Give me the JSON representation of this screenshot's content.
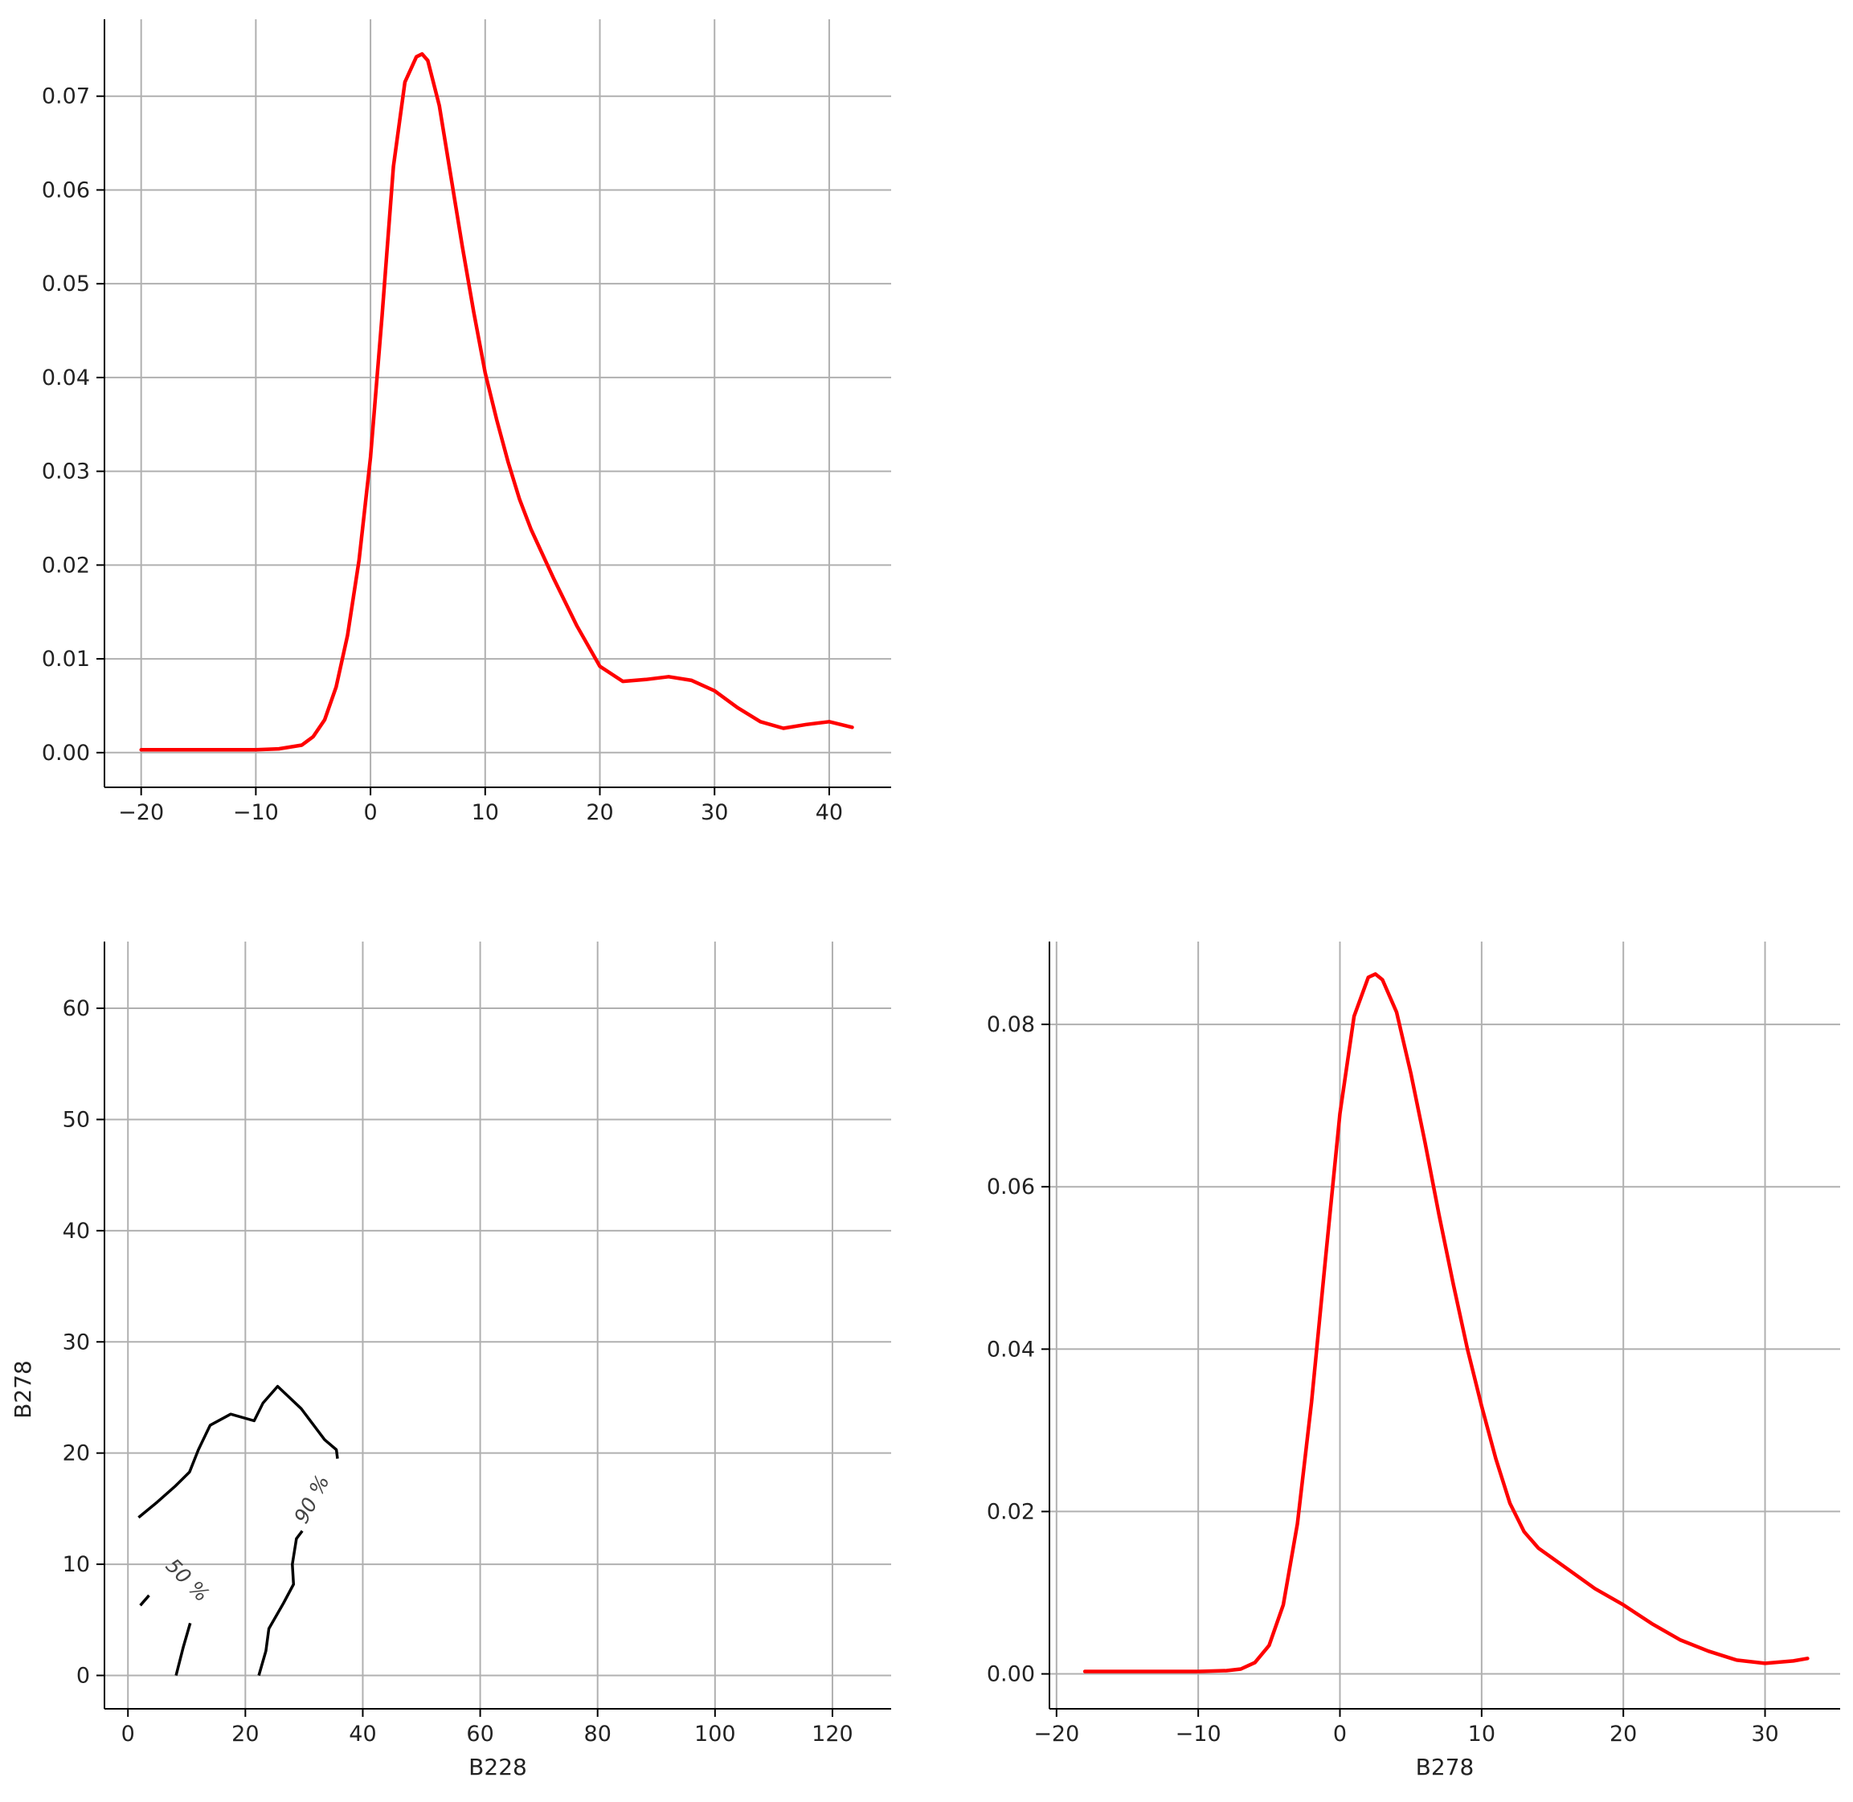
{
  "chart_data": [
    {
      "type": "line",
      "panel": "top-left",
      "title": "",
      "xlabel": "",
      "ylabel": "",
      "xlim": [
        -23.2,
        45.4
      ],
      "ylim": [
        -0.0037,
        0.0782
      ],
      "xticks": [
        -20,
        -10,
        0,
        10,
        20,
        30,
        40
      ],
      "xtick_labels": [
        "−20",
        "−10",
        "0",
        "10",
        "20",
        "30",
        "40"
      ],
      "yticks": [
        0.0,
        0.01,
        0.02,
        0.03,
        0.04,
        0.05,
        0.06,
        0.07
      ],
      "ytick_labels": [
        "0.00",
        "0.01",
        "0.02",
        "0.03",
        "0.04",
        "0.05",
        "0.06",
        "0.07"
      ],
      "grid": true,
      "color": "#ff0000",
      "series": [
        {
          "x": [
            -20,
            -10,
            -8,
            -6,
            -5,
            -4,
            -3,
            -2,
            -1,
            0,
            1,
            2,
            3,
            4,
            4.5,
            5,
            6,
            7,
            8,
            9,
            10,
            11,
            12,
            13,
            14,
            16,
            18,
            20,
            22,
            24,
            26,
            28,
            30,
            32,
            34,
            36,
            38,
            40,
            42
          ],
          "y": [
            0.0003,
            0.0003,
            0.0004,
            0.0008,
            0.0017,
            0.0035,
            0.007,
            0.0125,
            0.0205,
            0.0315,
            0.0465,
            0.0625,
            0.0715,
            0.0742,
            0.0745,
            0.0738,
            0.069,
            0.0615,
            0.054,
            0.047,
            0.0405,
            0.0355,
            0.031,
            0.027,
            0.0238,
            0.0185,
            0.0135,
            0.0092,
            0.0076,
            0.0078,
            0.0081,
            0.0077,
            0.0066,
            0.0048,
            0.0033,
            0.0026,
            0.003,
            0.0033,
            0.0027
          ]
        }
      ]
    },
    {
      "type": "contour",
      "panel": "bottom-left",
      "title": "",
      "xlabel": "B228",
      "ylabel": "B278",
      "xlim": [
        -4,
        130
      ],
      "ylim": [
        -3,
        66
      ],
      "xticks": [
        0,
        20,
        40,
        60,
        80,
        100,
        120
      ],
      "xtick_labels": [
        "0",
        "20",
        "40",
        "60",
        "80",
        "100",
        "120"
      ],
      "yticks": [
        0,
        10,
        20,
        30,
        40,
        50,
        60
      ],
      "ytick_labels": [
        "0",
        "10",
        "20",
        "30",
        "40",
        "50",
        "60"
      ],
      "grid": true,
      "color": "#000000",
      "series": [
        {
          "name": "90 %",
          "label_at": [
            31.5,
            15.8
          ],
          "segments": [
            [
              [
                1.8,
                14.2
              ],
              [
                5,
                15.6
              ],
              [
                8,
                17
              ],
              [
                10.5,
                18.3
              ],
              [
                12,
                20.3
              ],
              [
                14,
                22.5
              ],
              [
                17.5,
                23.5
              ],
              [
                21.5,
                22.9
              ],
              [
                23,
                24.5
              ],
              [
                25.5,
                26
              ],
              [
                29.5,
                24
              ],
              [
                33.5,
                21.2
              ],
              [
                35.5,
                20.3
              ],
              [
                35.7,
                19.5
              ]
            ],
            [
              [
                29.7,
                13
              ],
              [
                28.7,
                12.3
              ],
              [
                28,
                10
              ],
              [
                28.2,
                8.2
              ],
              [
                26.5,
                6.5
              ],
              [
                24,
                4.2
              ],
              [
                23.5,
                2.2
              ],
              [
                22.3,
                0
              ]
            ]
          ]
        },
        {
          "name": "50 %",
          "label_at": [
            10,
            8.5
          ],
          "segments": [
            [
              [
                2.1,
                6.3
              ],
              [
                3.6,
                7.2
              ]
            ],
            [
              [
                10.6,
                4.7
              ],
              [
                9.4,
                2.5
              ],
              [
                8.2,
                0
              ]
            ]
          ]
        }
      ]
    },
    {
      "type": "line",
      "panel": "bottom-right",
      "title": "",
      "xlabel": "B278",
      "ylabel": "",
      "xlim": [
        -20.5,
        35.3
      ],
      "ylim": [
        -0.0043,
        0.0902
      ],
      "xticks": [
        -20,
        -10,
        0,
        10,
        20,
        30
      ],
      "xtick_labels": [
        "−20",
        "−10",
        "0",
        "10",
        "20",
        "30"
      ],
      "yticks": [
        0.0,
        0.02,
        0.04,
        0.06,
        0.08
      ],
      "ytick_labels": [
        "0.00",
        "0.02",
        "0.04",
        "0.06",
        "0.08"
      ],
      "grid": true,
      "color": "#ff0000",
      "series": [
        {
          "x": [
            -18,
            -10,
            -8,
            -7,
            -6,
            -5,
            -4,
            -3,
            -2,
            -1,
            0,
            1,
            2,
            2.5,
            3,
            4,
            5,
            6,
            7,
            8,
            9,
            10,
            11,
            12,
            13,
            14,
            16,
            18,
            20,
            22,
            24,
            26,
            28,
            30,
            32,
            33
          ],
          "y": [
            0.0003,
            0.0003,
            0.0004,
            0.0006,
            0.0014,
            0.0035,
            0.0085,
            0.0185,
            0.0335,
            0.0515,
            0.069,
            0.081,
            0.0858,
            0.0862,
            0.0855,
            0.0815,
            0.074,
            0.0655,
            0.0565,
            0.048,
            0.04,
            0.033,
            0.0265,
            0.021,
            0.0175,
            0.0155,
            0.013,
            0.0105,
            0.0085,
            0.0062,
            0.0042,
            0.0028,
            0.0017,
            0.0013,
            0.0016,
            0.0019
          ]
        }
      ]
    }
  ]
}
